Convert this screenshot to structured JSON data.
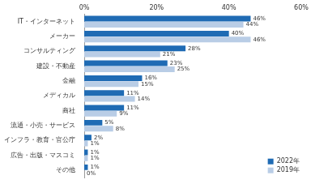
{
  "chart_data": {
    "type": "bar",
    "orientation": "horizontal",
    "categories": [
      "IT・インターネット",
      "メーカー",
      "コンサルティング",
      "建設・不動産",
      "金融",
      "メディカル",
      "商社",
      "流通・小売・サービス",
      "インフラ・教育・官公庁",
      "広告・出版・マスコミ",
      "その他"
    ],
    "series": [
      {
        "name": "2022年",
        "color": "#1f6bb4",
        "values": [
          46,
          40,
          28,
          23,
          16,
          11,
          11,
          5,
          2,
          1,
          1
        ],
        "value_labels": [
          "46%",
          "40%",
          "28%",
          "23%",
          "16%",
          "11%",
          "11%",
          "5%",
          "2%",
          "1%",
          "1%"
        ]
      },
      {
        "name": "2019年",
        "color": "#b9cde6",
        "values": [
          44,
          46,
          21,
          25,
          15,
          14,
          9,
          8,
          1,
          1,
          0
        ],
        "value_labels": [
          "44%",
          "46%",
          "21%",
          "25%",
          "15%",
          "14%",
          "9%",
          "8%",
          "1%",
          "1%",
          "0%"
        ]
      }
    ],
    "xlim": [
      0,
      60
    ],
    "xticks": [
      {
        "value": 0,
        "label": "0%"
      },
      {
        "value": 20,
        "label": "20%"
      },
      {
        "value": 40,
        "label": "40%"
      },
      {
        "value": 60,
        "label": "60%"
      }
    ],
    "grid": false,
    "legend": "lower right",
    "data_labels": true
  }
}
